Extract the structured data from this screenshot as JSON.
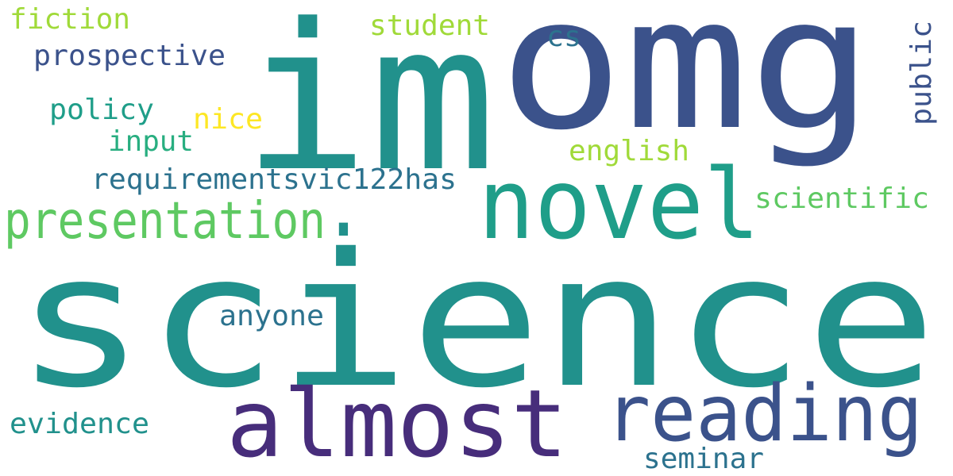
{
  "words": [
    {
      "text": "science",
      "color": "#21918c"
    },
    {
      "text": "omg",
      "color": "#3b528b"
    },
    {
      "text": "im",
      "color": "#21918c"
    },
    {
      "text": "almost",
      "color": "#472d7b"
    },
    {
      "text": "reading",
      "color": "#3b528b"
    },
    {
      "text": "novel",
      "color": "#1f9e89"
    },
    {
      "text": "presentation",
      "color": "#5ec962"
    },
    {
      "text": ".",
      "color": "#21918c"
    },
    {
      "text": "requirementsvic122has",
      "color": "#2c728e"
    },
    {
      "text": "prospective",
      "color": "#3b528b"
    },
    {
      "text": "fiction",
      "color": "#a0da39"
    },
    {
      "text": "student",
      "color": "#a0da39"
    },
    {
      "text": "cs",
      "color": "#2c728e"
    },
    {
      "text": "public",
      "color": "#3b528b"
    },
    {
      "text": "policy",
      "color": "#1f9e89"
    },
    {
      "text": "nice",
      "color": "#fde725"
    },
    {
      "text": "input",
      "color": "#28ae80"
    },
    {
      "text": "english",
      "color": "#a0da39"
    },
    {
      "text": "scientific",
      "color": "#5ec962"
    },
    {
      "text": "anyone",
      "color": "#2c728e"
    },
    {
      "text": "evidence",
      "color": "#21918c"
    },
    {
      "text": "seminar",
      "color": "#2c728e"
    }
  ]
}
